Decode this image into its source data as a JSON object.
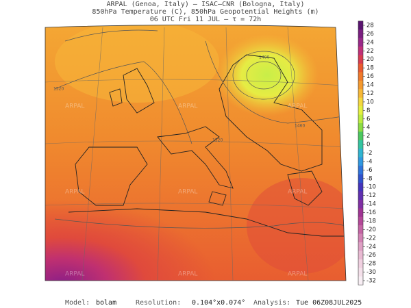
{
  "header": {
    "lines": [
      "ARPAL (Genoa, Italy)  –  ISAC–CNR (Bologna, Italy)",
      "850hPa Temperature (C), 850hPa Geopotential Heights (m)",
      "06 UTC Fri 11 JUL  –  τ = 72h"
    ]
  },
  "map": {
    "watermark": "ARPAL",
    "contour_labels": [
      "1520",
      "1400",
      "1460",
      "1520"
    ]
  },
  "colorbar": {
    "ticks": [
      28,
      26,
      24,
      22,
      20,
      18,
      16,
      14,
      12,
      10,
      8,
      6,
      4,
      2,
      0,
      -2,
      -4,
      -6,
      -8,
      -10,
      -12,
      -14,
      -16,
      -18,
      -20,
      -22,
      -24,
      -26,
      -28,
      -30,
      -32
    ],
    "colors": [
      "#5a1470",
      "#7a1e80",
      "#9a2888",
      "#c03078",
      "#d83c50",
      "#ea5a30",
      "#f07a2c",
      "#f49a30",
      "#f6b838",
      "#f4d840",
      "#e4f040",
      "#bcec40",
      "#8cdc44",
      "#4cc860",
      "#34c4a0",
      "#30b4d0",
      "#3098e0",
      "#2f74dc",
      "#3052cc",
      "#4434bc",
      "#6030b0",
      "#8030a4",
      "#a03494",
      "#b44898",
      "#c464a4",
      "#d282b4",
      "#dea0c4",
      "#e8bad2",
      "#f0d0e0",
      "#f4e0ea",
      "#f8eef4"
    ]
  },
  "footer": {
    "model_label": "Model:",
    "model": "bolam",
    "resolution_label": "Resolution:",
    "resolution": "0.104°x0.074°",
    "analysis_label": "Analysis:",
    "analysis": "Tue 06Z08JUL2025"
  }
}
